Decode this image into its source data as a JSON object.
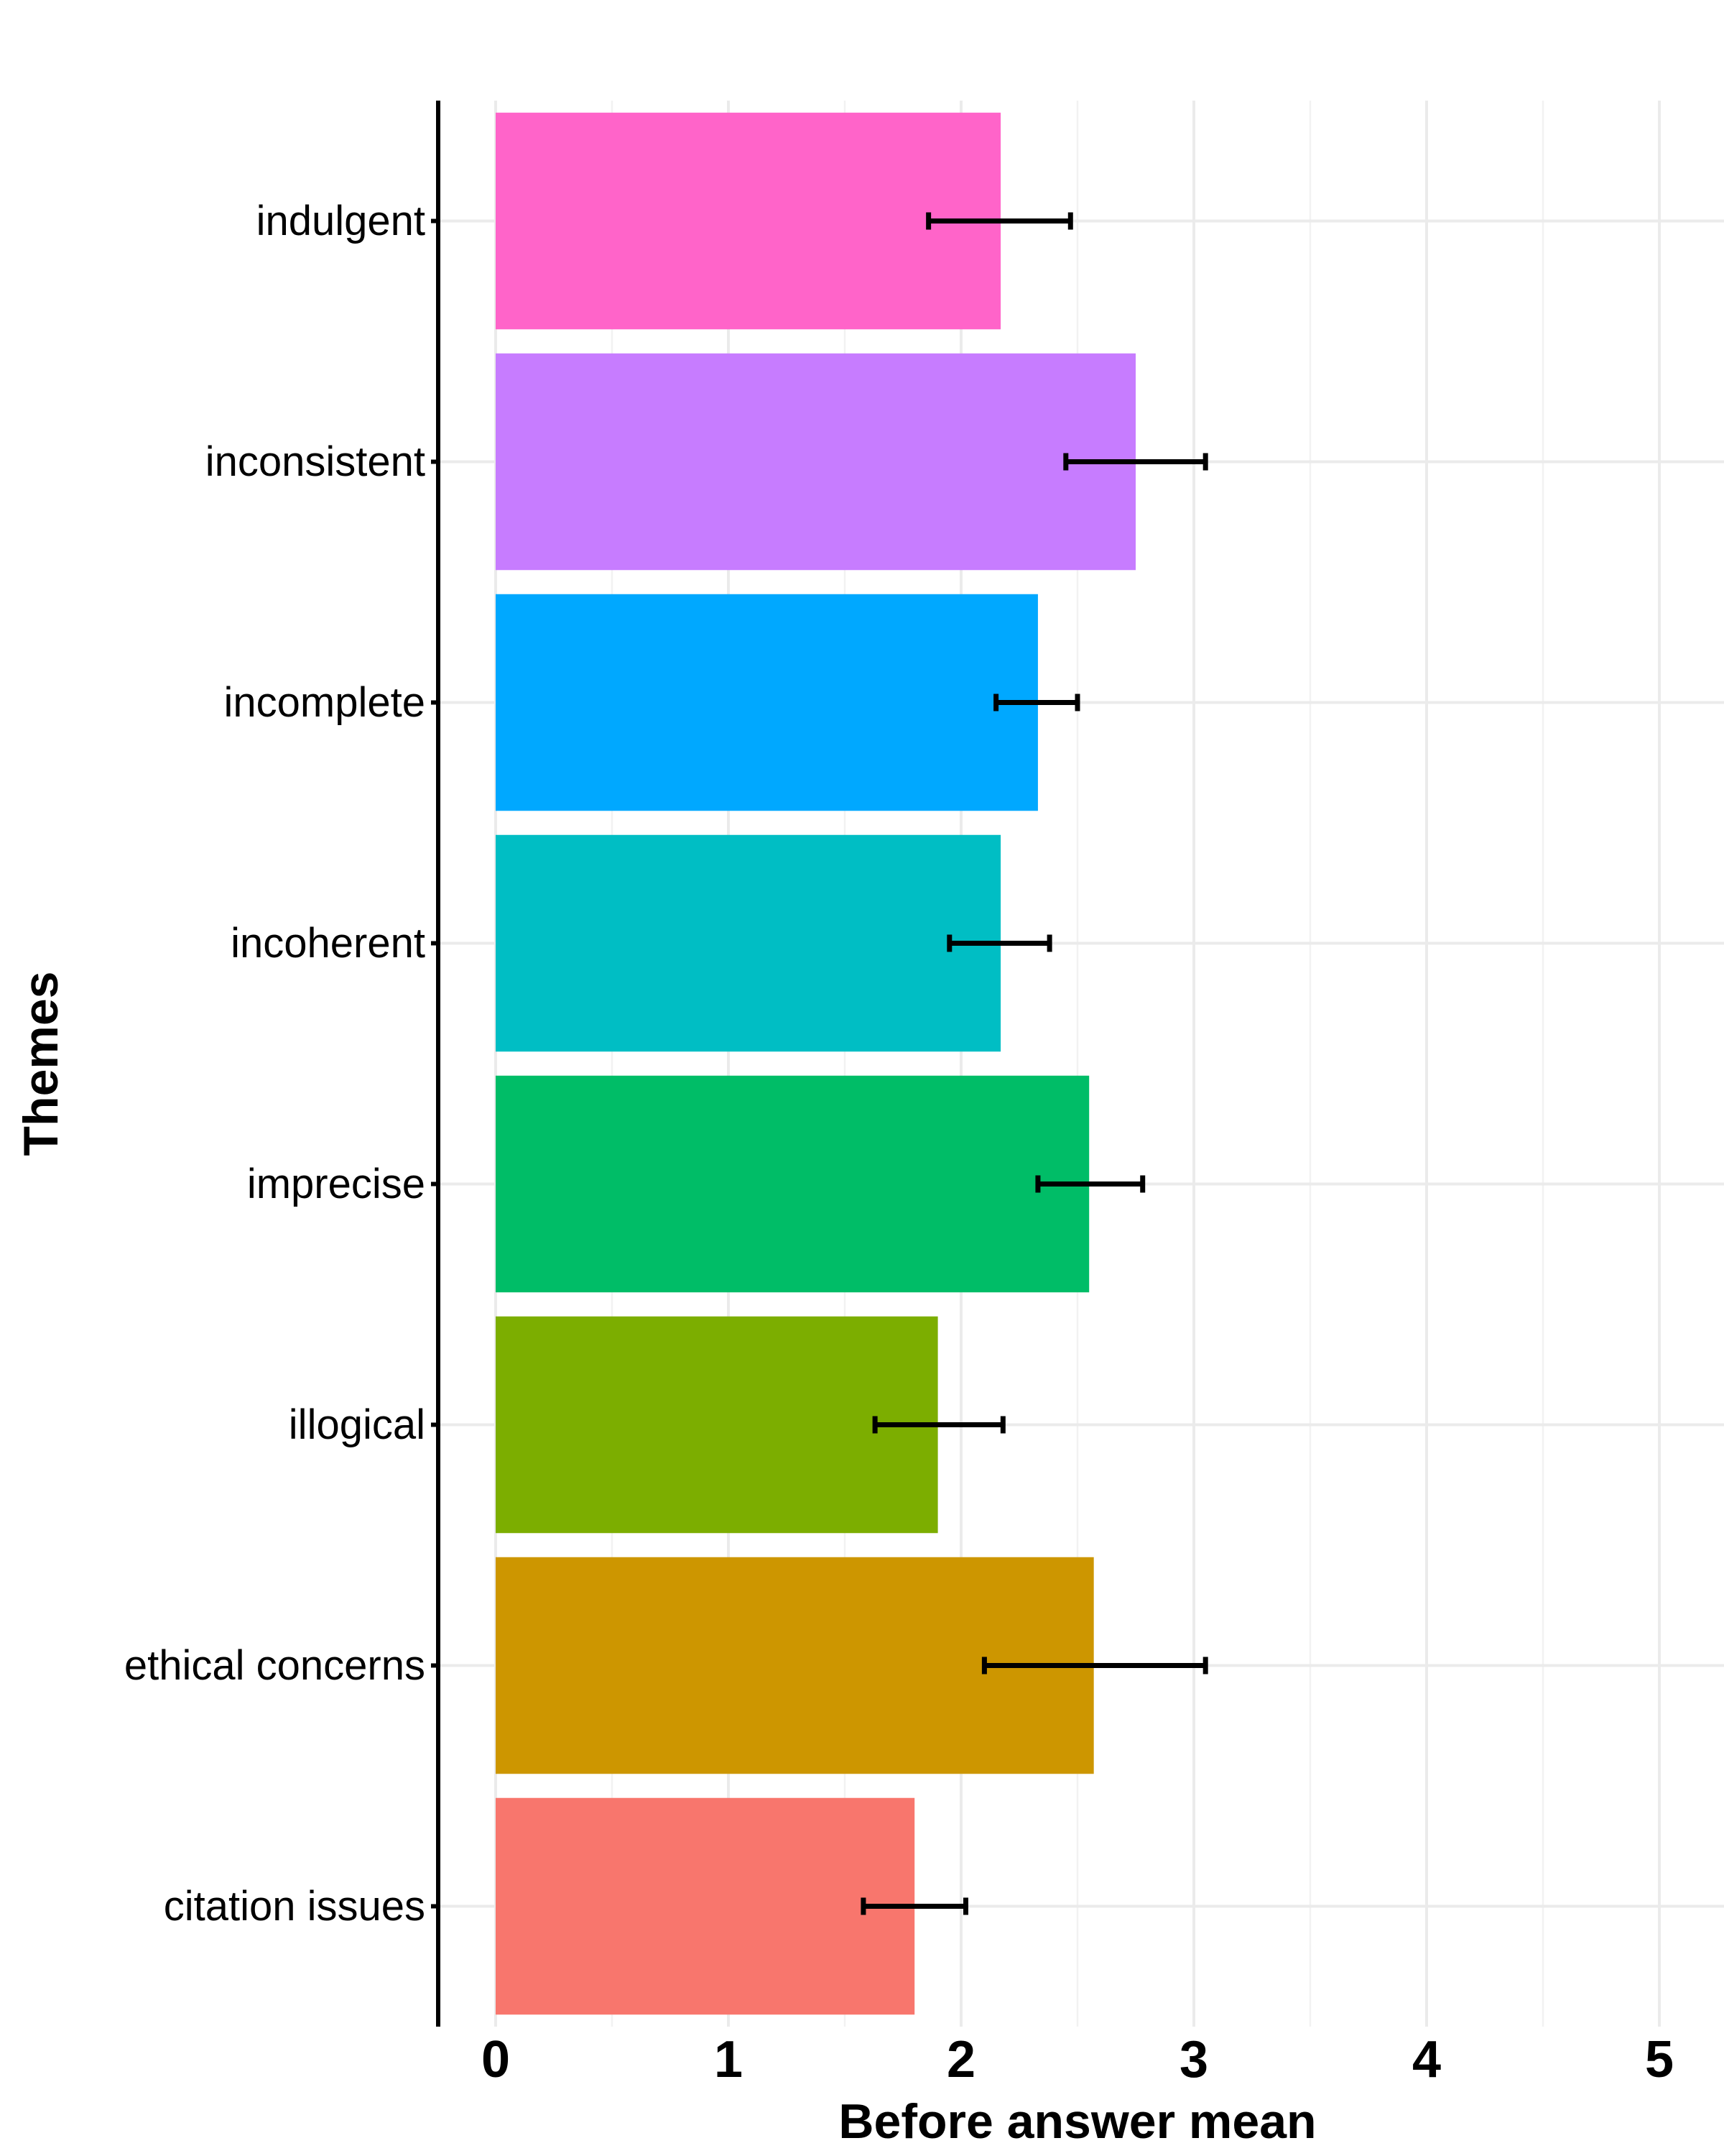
{
  "chart_data": {
    "type": "bar",
    "orientation": "horizontal",
    "xlabel": "Before answer mean",
    "ylabel": "Themes",
    "xlim": [
      0,
      5
    ],
    "x_ticks": [
      "0",
      "1",
      "2",
      "3",
      "4",
      "5"
    ],
    "grid": true,
    "legend": "none",
    "categories": [
      "indulgent",
      "inconsistent",
      "incomplete",
      "incoherent",
      "imprecise",
      "illogical",
      "ethical concerns",
      "citation issues"
    ],
    "values": [
      2.17,
      2.75,
      2.33,
      2.17,
      2.55,
      1.9,
      2.57,
      1.8
    ],
    "error_low": [
      1.86,
      2.45,
      2.15,
      1.95,
      2.33,
      1.63,
      2.1,
      1.58
    ],
    "error_high": [
      2.47,
      3.05,
      2.5,
      2.38,
      2.78,
      2.18,
      3.05,
      2.02
    ],
    "colors": [
      "#FF64C9",
      "#C77CFF",
      "#00A8FF",
      "#00BEC4",
      "#00BD67",
      "#7CAE00",
      "#CD9600",
      "#F8766D"
    ]
  }
}
